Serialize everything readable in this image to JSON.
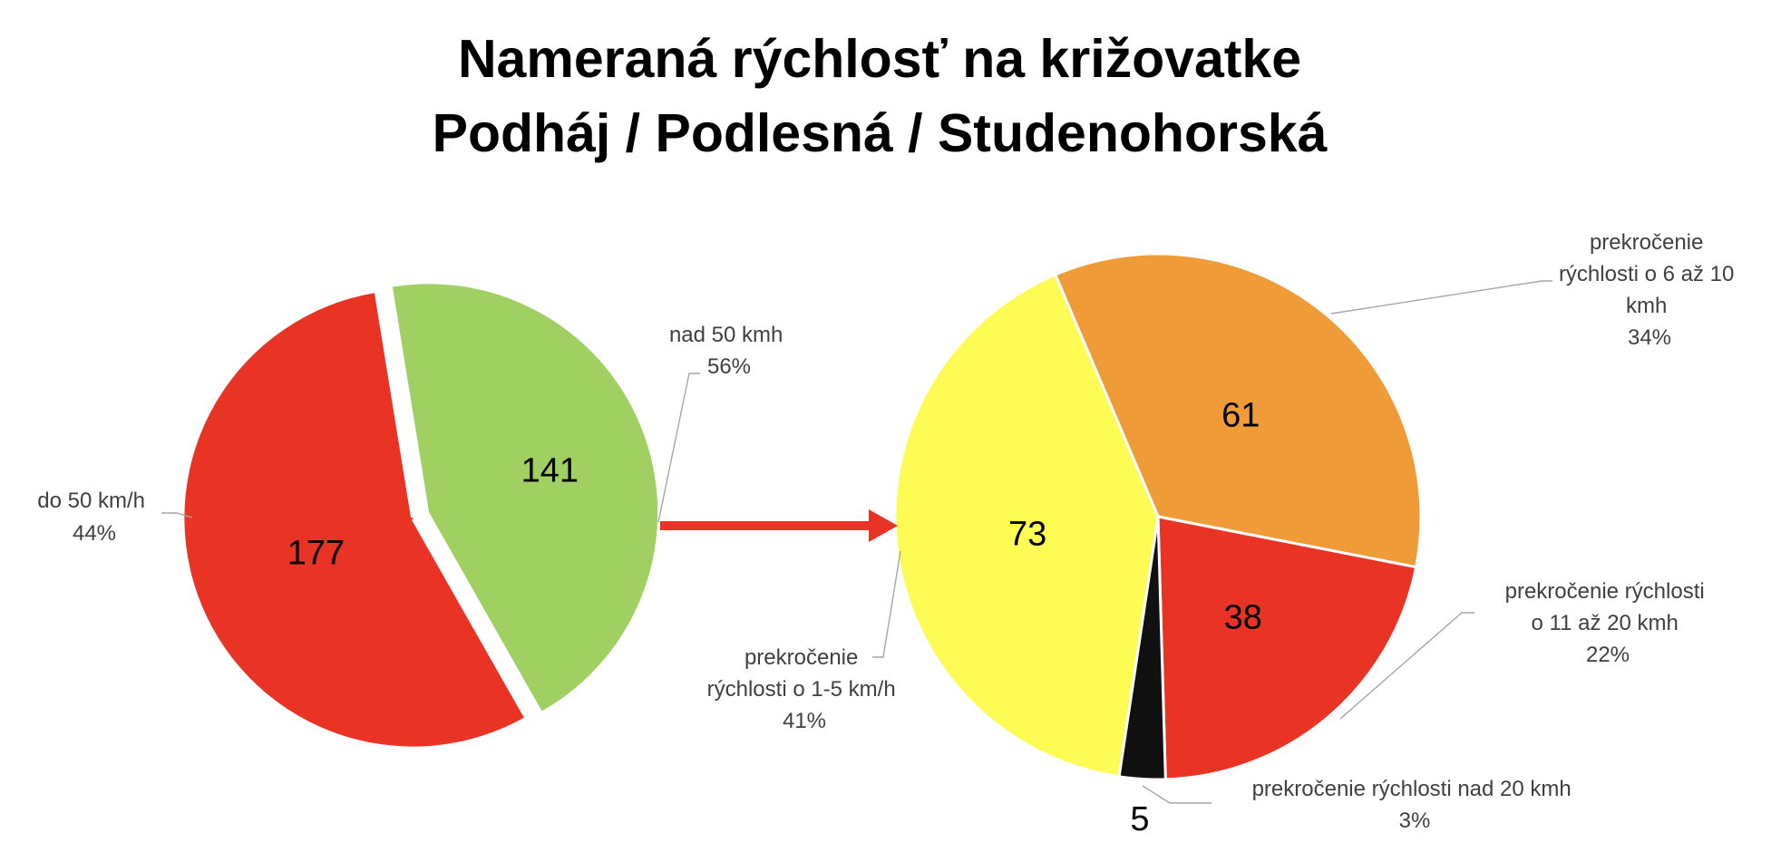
{
  "title": {
    "line1": "Nameraná rýchlosť na križovatke",
    "line2": "Podháj / Podlesná / Studenohorská"
  },
  "chart_data": [
    {
      "type": "pie",
      "categories": [
        "do 50 km/h",
        "nad 50 kmh"
      ],
      "values": [
        141,
        177
      ],
      "percent_labels": [
        "44%",
        "56%"
      ],
      "colors": [
        "#a0cf62",
        "#e83325"
      ],
      "value_label_color": "#000000"
    },
    {
      "type": "pie",
      "categories": [
        "prekročenie rýchlosti o 6 až 10 kmh",
        "prekročenie rýchlosti o 11 až 20 kmh",
        "prekročenie rýchlosti nad 20 kmh",
        "prekročenie rýchlosti o 1-5 km/h"
      ],
      "values": [
        61,
        38,
        5,
        73
      ],
      "percent_labels": [
        "34%",
        "22%",
        "3%",
        "41%"
      ],
      "colors": [
        "#ef9c38",
        "#e83325",
        "#111111",
        "#fefb54"
      ]
    }
  ],
  "connector": {
    "color": "#e83325",
    "icon": "arrow-right-icon"
  }
}
